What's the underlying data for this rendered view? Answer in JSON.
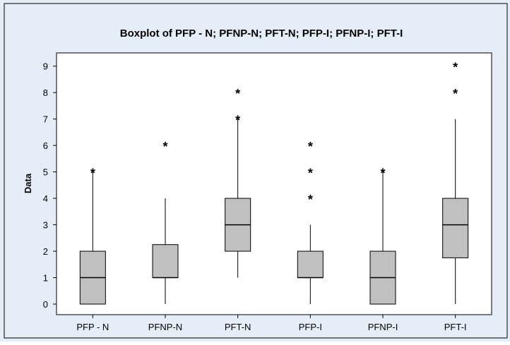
{
  "chart_data": {
    "type": "boxplot",
    "title": "Boxplot of PFP - N; PFNP-N; PFT-N; PFP-I; PFNP-I; PFT-I",
    "ylabel": "Data",
    "xlabel": "",
    "ylim": [
      -0.4,
      9.5
    ],
    "yticks": [
      0,
      1,
      2,
      3,
      4,
      5,
      6,
      7,
      8,
      9
    ],
    "grid": false,
    "colors": {
      "background": "#e5eef7",
      "plot": "#ffffff",
      "box": "#c0c0c0",
      "line": "#000000"
    },
    "categories": [
      "PFP - N",
      "PFNP-N",
      "PFT-N",
      "PFP-I",
      "PFNP-I",
      "PFT-I"
    ],
    "boxes": [
      {
        "q1": 0,
        "median": 1,
        "q3": 2,
        "whisker_low": 0,
        "whisker_high": 5,
        "outliers": [
          5
        ]
      },
      {
        "q1": 1,
        "median": 1,
        "q3": 2.25,
        "whisker_low": 0,
        "whisker_high": 4,
        "outliers": [
          6
        ]
      },
      {
        "q1": 2,
        "median": 3,
        "q3": 4,
        "whisker_low": 1,
        "whisker_high": 7,
        "outliers": [
          7,
          8
        ]
      },
      {
        "q1": 1,
        "median": 1,
        "q3": 2,
        "whisker_low": 0,
        "whisker_high": 3,
        "outliers": [
          4,
          5,
          6
        ]
      },
      {
        "q1": 0,
        "median": 1,
        "q3": 2,
        "whisker_low": 0,
        "whisker_high": 5,
        "outliers": [
          5
        ]
      },
      {
        "q1": 1.75,
        "median": 3,
        "q3": 4,
        "whisker_low": 0,
        "whisker_high": 7,
        "outliers": [
          8,
          9
        ]
      }
    ]
  }
}
